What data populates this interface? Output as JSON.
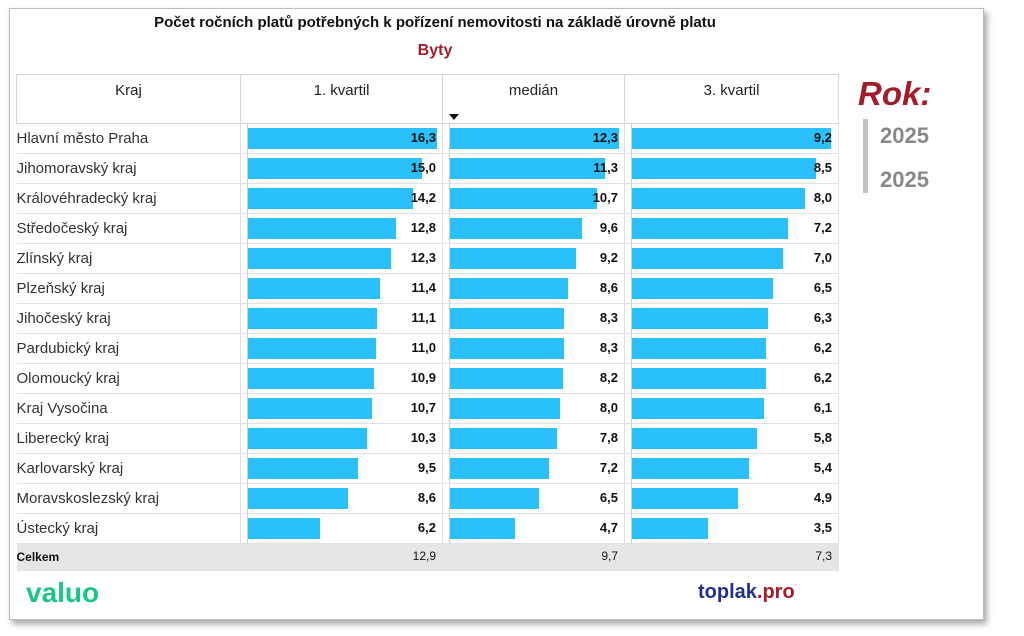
{
  "header": {
    "title": "Počet ročních platů potřebných k pořízení nemovitosti na základě úrovně platu",
    "subtitle": "Byty"
  },
  "table": {
    "columns": [
      "Kraj",
      "1. kvartil",
      "medián",
      "3. kvartil"
    ],
    "total_label": "Celkem",
    "totals": [
      "12,9",
      "9,7",
      "7,3"
    ]
  },
  "filter": {
    "label": "Rok:",
    "items": [
      "2025",
      "2025"
    ]
  },
  "logos": {
    "valuo": "valuo",
    "toplak_main": "toplak",
    "toplak_suffix": ".pro"
  },
  "colors": {
    "bar": "#29c0fb",
    "accent": "#a11d2b",
    "valuo": "#19c785",
    "toplak": "#23308e"
  },
  "chart_data": {
    "type": "table",
    "title": "Počet ročních platů potřebných k pořízení nemovitosti na základě úrovně platu",
    "subtitle": "Byty",
    "categories": [
      "Hlavní město Praha",
      "Jihomoravský kraj",
      "Královéhradecký kraj",
      "Středočeský kraj",
      "Zlínský kraj",
      "Plzeňský kraj",
      "Jihočeský kraj",
      "Pardubický kraj",
      "Olomoucký kraj",
      "Kraj Vysočina",
      "Liberecký kraj",
      "Karlovarský kraj",
      "Moravskoslezský kraj",
      "Ústecký kraj"
    ],
    "series": [
      {
        "name": "1. kvartil",
        "values": [
          16.3,
          15.0,
          14.2,
          12.8,
          12.3,
          11.4,
          11.1,
          11.0,
          10.9,
          10.7,
          10.3,
          9.5,
          8.6,
          6.2
        ],
        "labels": [
          "16,3",
          "15,0",
          "14,2",
          "12,8",
          "12,3",
          "11,4",
          "11,1",
          "11,0",
          "10,9",
          "10,7",
          "10,3",
          "9,5",
          "8,6",
          "6,2"
        ],
        "max": 16.3
      },
      {
        "name": "medián",
        "values": [
          12.3,
          11.3,
          10.7,
          9.6,
          9.2,
          8.6,
          8.3,
          8.3,
          8.2,
          8.0,
          7.8,
          7.2,
          6.5,
          4.7
        ],
        "labels": [
          "12,3",
          "11,3",
          "10,7",
          "9,6",
          "9,2",
          "8,6",
          "8,3",
          "8,3",
          "8,2",
          "8,0",
          "7,8",
          "7,2",
          "6,5",
          "4,7"
        ],
        "max": 12.3
      },
      {
        "name": "3. kvartil",
        "values": [
          9.2,
          8.5,
          8.0,
          7.2,
          7.0,
          6.5,
          6.3,
          6.2,
          6.2,
          6.1,
          5.8,
          5.4,
          4.9,
          3.5
        ],
        "labels": [
          "9,2",
          "8,5",
          "8,0",
          "7,2",
          "7,0",
          "6,5",
          "6,3",
          "6,2",
          "6,2",
          "6,1",
          "5,8",
          "5,4",
          "4,9",
          "3,5"
        ],
        "max": 9.2
      }
    ]
  }
}
